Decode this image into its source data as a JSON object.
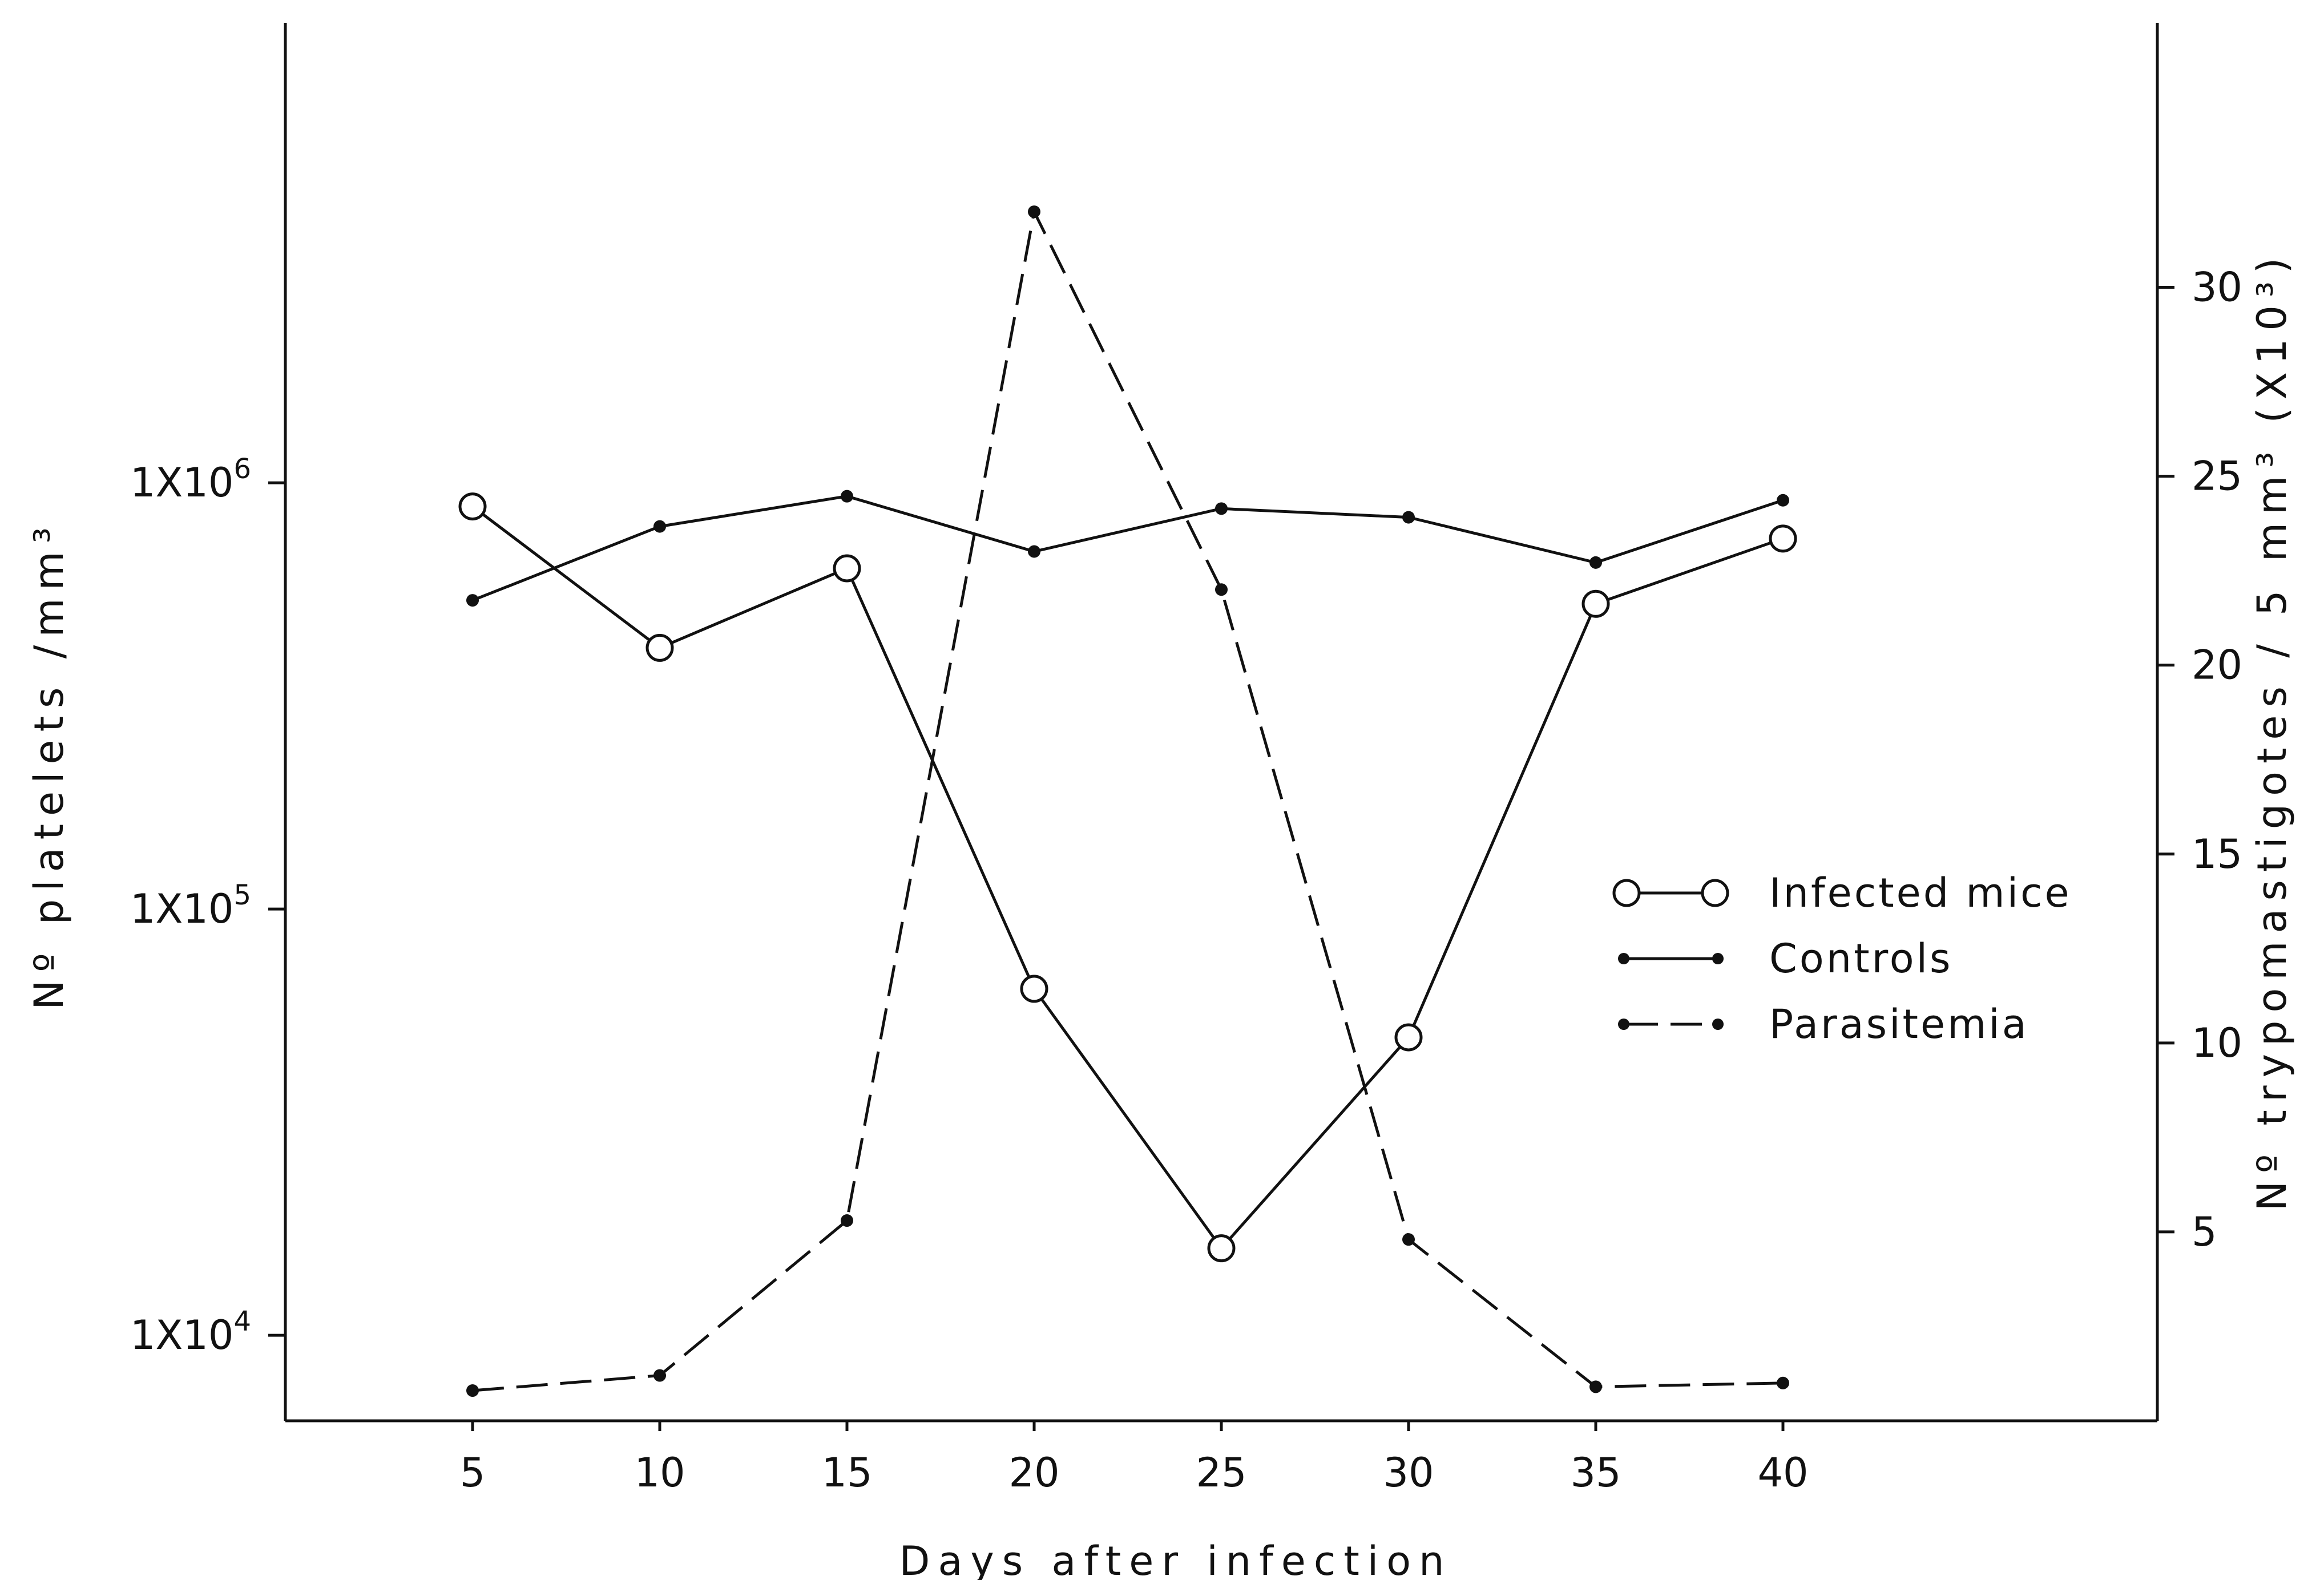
{
  "chart_data": {
    "type": "line",
    "xlabel": "Days after infection",
    "ylabel_left": "Nº platelets /mm³",
    "ylabel_right": "Nº trypomastigotes / 5 mm³ (X10³)",
    "x": [
      5,
      10,
      15,
      20,
      25,
      30,
      35,
      40
    ],
    "x_ticks": [
      "5",
      "10",
      "15",
      "20",
      "25",
      "30",
      "35",
      "40"
    ],
    "xlim": [
      0,
      50
    ],
    "y_left": {
      "scale": "log",
      "ylim": [
        6300,
        12000000
      ],
      "ticks": [
        {
          "value": 1000000,
          "base": "1X10",
          "exp": "6"
        },
        {
          "value": 100000,
          "base": "1X10",
          "exp": "5"
        },
        {
          "value": 10000,
          "base": "1X10",
          "exp": "4"
        }
      ]
    },
    "y_right": {
      "scale": "linear",
      "ylim": [
        0,
        37
      ],
      "ticks": [
        "5",
        "10",
        "15",
        "20",
        "25",
        "30"
      ]
    },
    "series": [
      {
        "name": "Infected mice",
        "axis": "left",
        "marker": "open-circle",
        "style": "solid",
        "values": [
          880000,
          410000,
          630000,
          65000,
          16000,
          50000,
          520000,
          740000
        ]
      },
      {
        "name": "Controls",
        "axis": "left",
        "marker": "dot",
        "style": "solid",
        "values": [
          530000,
          790000,
          930000,
          690000,
          870000,
          830000,
          650000,
          910000
        ]
      },
      {
        "name": "Parasitemia",
        "axis": "right",
        "marker": "dot",
        "style": "dashed",
        "values": [
          0.8,
          1.2,
          5.3,
          32,
          22,
          4.8,
          0.9,
          1.0
        ]
      }
    ],
    "legend_position": "right-center",
    "grid": false
  }
}
